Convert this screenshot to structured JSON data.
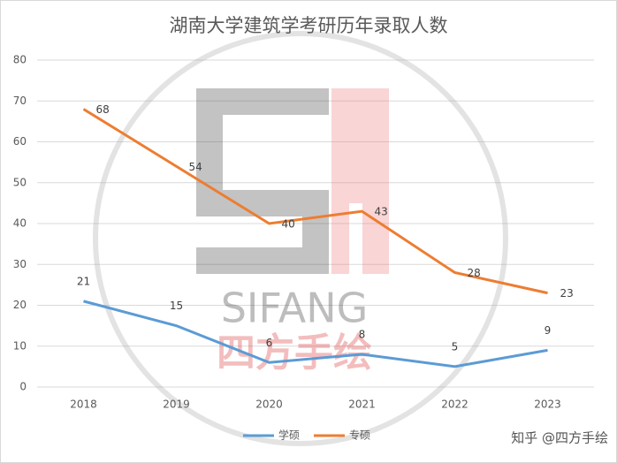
{
  "chart_data": {
    "type": "line",
    "title": "湖南大学建筑学考研历年录取人数",
    "categories": [
      "2018",
      "2019",
      "2020",
      "2021",
      "2022",
      "2023"
    ],
    "series": [
      {
        "name": "学硕",
        "color": "#5b9bd5",
        "values": [
          21,
          15,
          6,
          8,
          5,
          9
        ]
      },
      {
        "name": "专硕",
        "color": "#ed7d31",
        "values": [
          68,
          54,
          40,
          43,
          28,
          23
        ]
      }
    ],
    "ylim": [
      0,
      80
    ],
    "yticks": [
      0,
      10,
      20,
      30,
      40,
      50,
      60,
      70,
      80
    ],
    "grid": true,
    "legend": "bottom"
  },
  "watermark": {
    "logo_text": "SIFANG",
    "logo_cn": "四方手绘",
    "credit": "知乎 @四方手绘"
  }
}
